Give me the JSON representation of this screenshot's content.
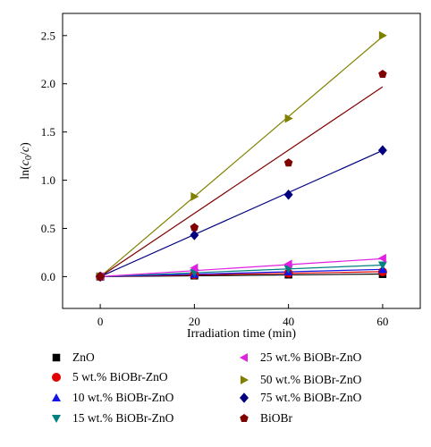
{
  "chart_data": {
    "type": "scatter",
    "xlabel": "Irradiation time (min)",
    "ylabel_prefix": "ln(",
    "ylabel_c0": "c",
    "ylabel_sub": "0",
    "ylabel_mid": "/",
    "ylabel_c": "c",
    "ylabel_suffix": ")",
    "xlim": [
      -8,
      68
    ],
    "ylim": [
      -0.33,
      2.73
    ],
    "xticks": [
      0,
      20,
      40,
      60
    ],
    "xtick_labels": [
      "0",
      "20",
      "40",
      "60"
    ],
    "yticks": [
      0.0,
      0.5,
      1.0,
      1.5,
      2.0,
      2.5
    ],
    "ytick_labels": [
      "0.0",
      "0.5",
      "1.0",
      "1.5",
      "2.0",
      "2.5"
    ],
    "x": [
      0,
      20,
      40,
      60
    ],
    "series": [
      {
        "name": "ZnO",
        "values": [
          0,
          0.01,
          0.02,
          0.025
        ],
        "fit_slope": 0.00045,
        "color": "#000000",
        "marker": "square"
      },
      {
        "name": "5 wt.% BiOBr-ZnO",
        "values": [
          0,
          0.02,
          0.035,
          0.05
        ],
        "fit_slope": 0.00085,
        "color": "#e00000",
        "marker": "circle"
      },
      {
        "name": "10 wt.% BiOBr-ZnO",
        "values": [
          0,
          0.025,
          0.05,
          0.075
        ],
        "fit_slope": 0.00125,
        "color": "#1414e6",
        "marker": "triangle-up"
      },
      {
        "name": "15 wt.% BiOBr-ZnO",
        "values": [
          0,
          0.04,
          0.08,
          0.12
        ],
        "fit_slope": 0.002,
        "color": "#008080",
        "marker": "triangle-down"
      },
      {
        "name": "25 wt.% BiOBr-ZnO",
        "values": [
          0,
          0.09,
          0.13,
          0.19
        ],
        "fit_slope": 0.0031,
        "color": "#e020e0",
        "marker": "triangle-left"
      },
      {
        "name": "50 wt.% BiOBr-ZnO",
        "values": [
          0,
          0.83,
          1.64,
          2.5
        ],
        "fit_slope": 0.0415,
        "color": "#808000",
        "marker": "triangle-right"
      },
      {
        "name": "75 wt.% BiOBr-ZnO",
        "values": [
          0,
          0.43,
          0.85,
          1.31
        ],
        "fit_slope": 0.0218,
        "color": "#000080",
        "marker": "diamond"
      },
      {
        "name": "BiOBr",
        "values": [
          0,
          0.51,
          1.18,
          2.1
        ],
        "fit_slope": 0.0328,
        "color": "#800000",
        "marker": "pentagon"
      }
    ],
    "grid": false,
    "legend_position": "bottom"
  }
}
